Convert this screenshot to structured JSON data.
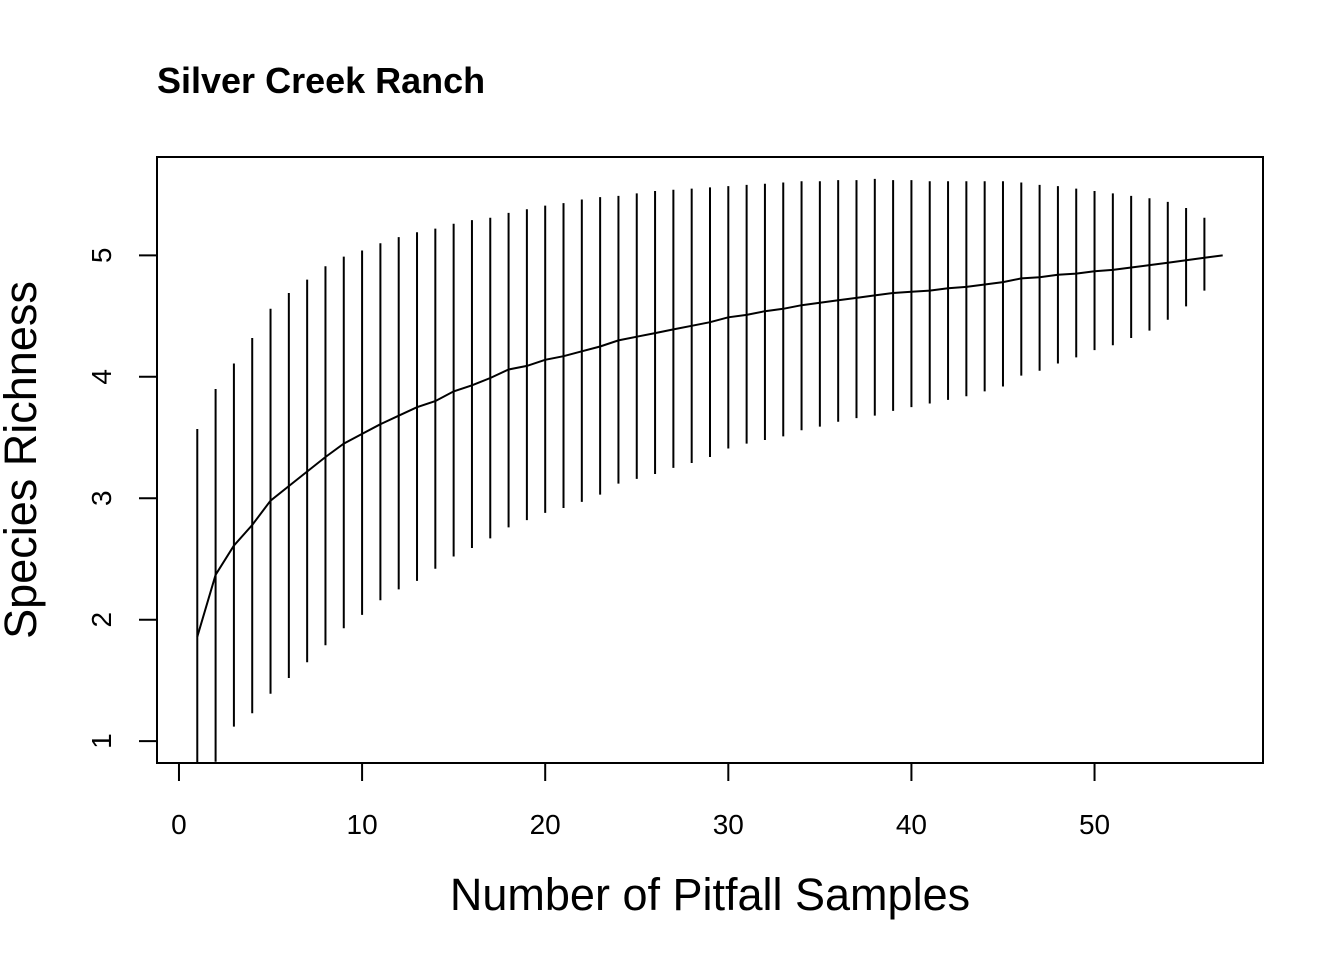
{
  "chart_data": {
    "type": "line",
    "title": "Silver Creek Ranch",
    "xlabel": "Number of Pitfall Samples",
    "ylabel": "Species Richness",
    "xlim": [
      -1.2,
      59.2
    ],
    "ylim": [
      0.82,
      5.81
    ],
    "x_ticks": [
      0,
      10,
      20,
      30,
      40,
      50
    ],
    "y_ticks": [
      1,
      2,
      3,
      4,
      5
    ],
    "grid": false,
    "line_color": "#000000",
    "series": [
      {
        "x": [
          1,
          2,
          3,
          4,
          5,
          6,
          7,
          8,
          9,
          10,
          11,
          12,
          13,
          14,
          15,
          16,
          17,
          18,
          19,
          20,
          21,
          22,
          23,
          24,
          25,
          26,
          27,
          28,
          29,
          30,
          31,
          32,
          33,
          34,
          35,
          36,
          37,
          38,
          39,
          40,
          41,
          42,
          43,
          44,
          45,
          46,
          47,
          48,
          49,
          50,
          51,
          52,
          53,
          54,
          55,
          56,
          57
        ],
        "values": [
          1.86,
          2.37,
          2.61,
          2.78,
          2.98,
          3.1,
          3.22,
          3.34,
          3.45,
          3.53,
          3.61,
          3.68,
          3.75,
          3.8,
          3.88,
          3.93,
          3.99,
          4.06,
          4.09,
          4.14,
          4.17,
          4.21,
          4.25,
          4.3,
          4.33,
          4.36,
          4.39,
          4.42,
          4.45,
          4.49,
          4.51,
          4.54,
          4.56,
          4.59,
          4.61,
          4.63,
          4.65,
          4.67,
          4.69,
          4.7,
          4.71,
          4.73,
          4.74,
          4.76,
          4.78,
          4.81,
          4.82,
          4.84,
          4.85,
          4.87,
          4.88,
          4.9,
          4.92,
          4.94,
          4.96,
          4.98,
          5.0
        ],
        "upper": [
          3.57,
          3.9,
          4.11,
          4.32,
          4.56,
          4.69,
          4.8,
          4.91,
          4.99,
          5.04,
          5.1,
          5.15,
          5.19,
          5.22,
          5.26,
          5.29,
          5.31,
          5.35,
          5.38,
          5.41,
          5.43,
          5.46,
          5.48,
          5.49,
          5.51,
          5.53,
          5.54,
          5.55,
          5.56,
          5.57,
          5.58,
          5.59,
          5.6,
          5.61,
          5.61,
          5.62,
          5.62,
          5.63,
          5.62,
          5.62,
          5.61,
          5.61,
          5.61,
          5.61,
          5.61,
          5.6,
          5.58,
          5.57,
          5.55,
          5.53,
          5.51,
          5.49,
          5.47,
          5.44,
          5.39,
          5.31,
          5.23
        ],
        "lower": [
          0.8,
          0.83,
          1.12,
          1.23,
          1.39,
          1.52,
          1.65,
          1.79,
          1.93,
          2.04,
          2.16,
          2.25,
          2.32,
          2.42,
          2.52,
          2.59,
          2.67,
          2.76,
          2.82,
          2.88,
          2.92,
          2.97,
          3.03,
          3.12,
          3.16,
          3.2,
          3.25,
          3.29,
          3.34,
          3.41,
          3.45,
          3.48,
          3.51,
          3.56,
          3.59,
          3.63,
          3.66,
          3.68,
          3.72,
          3.75,
          3.78,
          3.81,
          3.84,
          3.88,
          3.92,
          4.01,
          4.05,
          4.11,
          4.16,
          4.22,
          4.26,
          4.32,
          4.38,
          4.47,
          4.58,
          4.71,
          null
        ]
      }
    ]
  }
}
